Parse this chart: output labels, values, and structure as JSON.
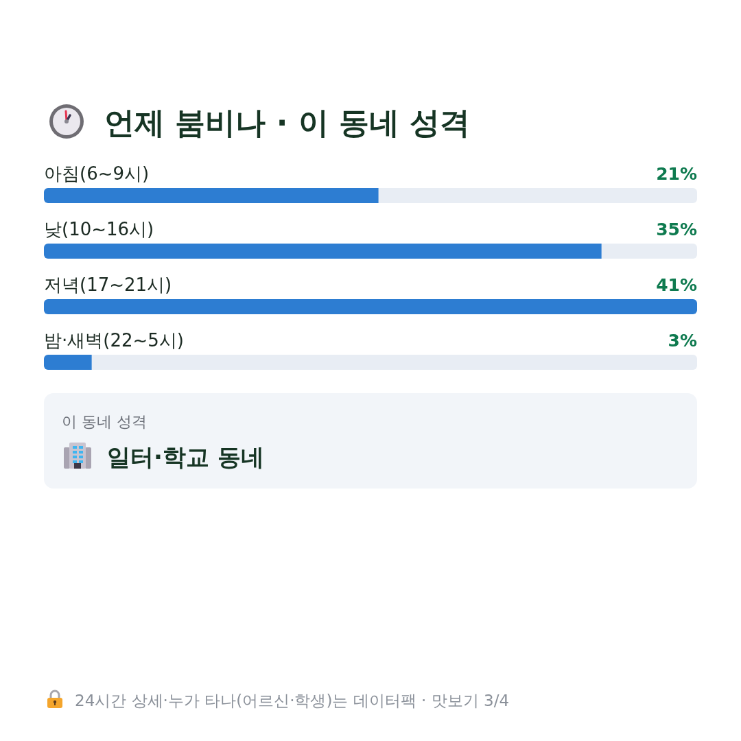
{
  "chart_data": {
    "type": "bar",
    "orientation": "horizontal",
    "title": "언제 붐비나 · 이 동네 성격",
    "categories": [
      "아침(6~9시)",
      "낮(10~16시)",
      "저녁(17~21시)",
      "밤·새벽(22~5시)"
    ],
    "values": [
      21,
      35,
      41,
      3
    ],
    "value_labels": [
      "21%",
      "35%",
      "41%",
      "3%"
    ],
    "color": "#2d7dd2",
    "annotations": [
      "이 동네 성격",
      "일터·학교 동네",
      "24시간 상세·누가 타나(어르신·학생)는 데이터팩 · 맛보기 3/4"
    ]
  }
}
